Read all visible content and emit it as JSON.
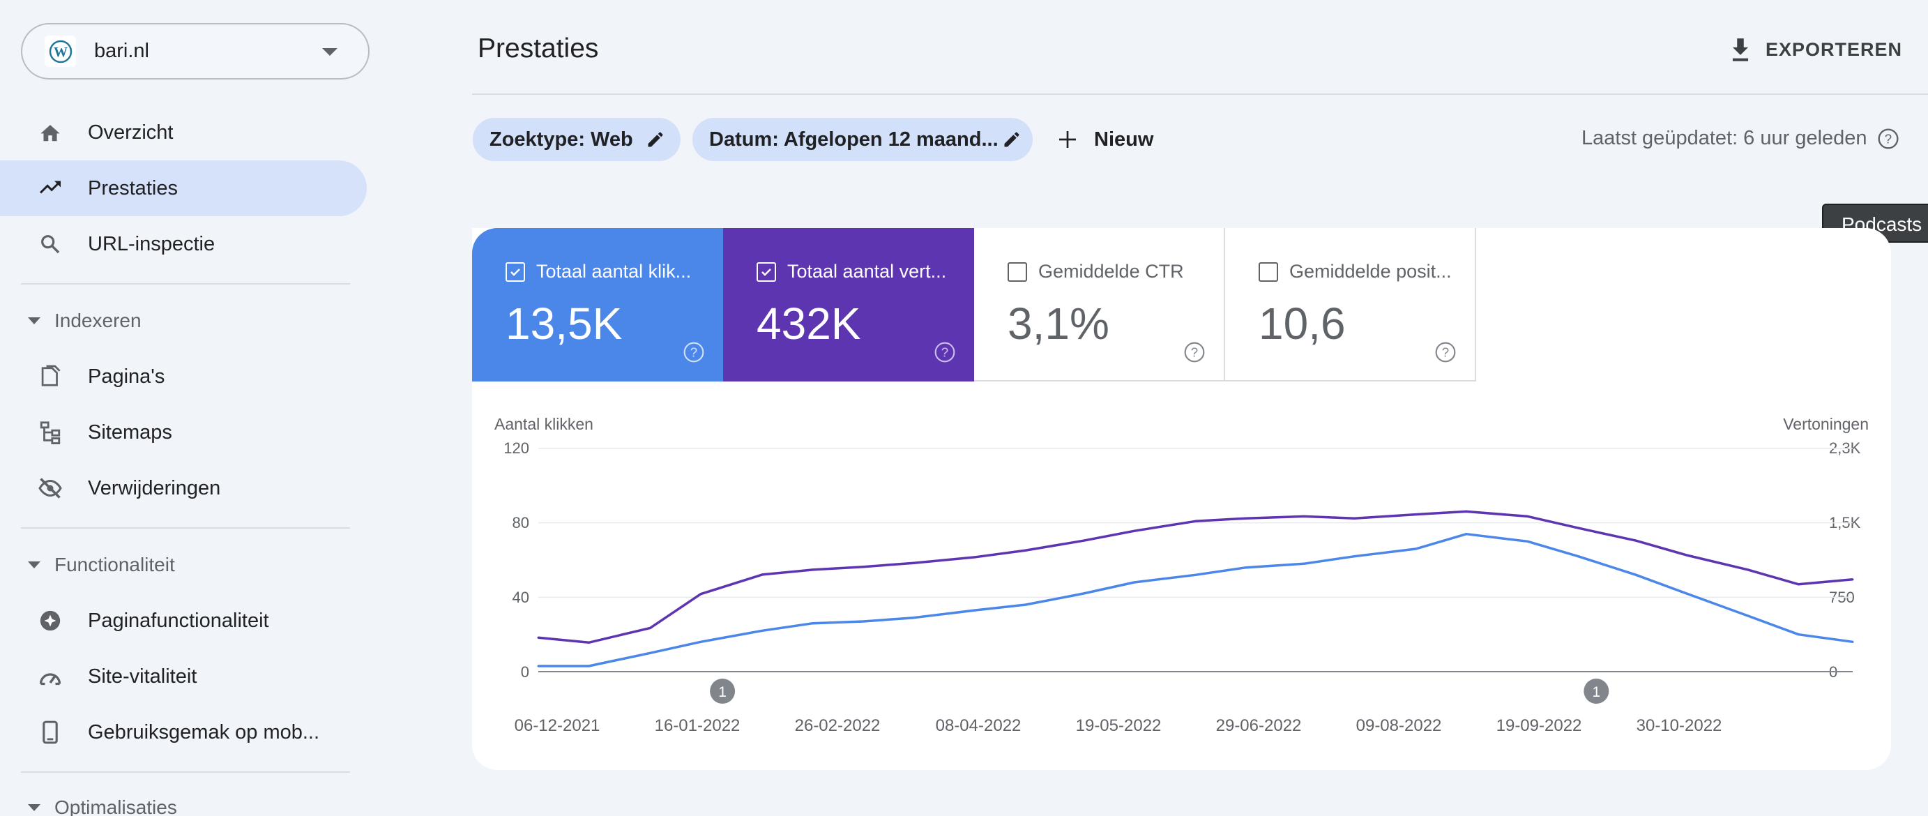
{
  "property": {
    "name": "bari.nl",
    "icon": "wordpress-icon"
  },
  "sidebar": {
    "items": [
      {
        "label": "Overzicht",
        "icon": "home-icon"
      },
      {
        "label": "Prestaties",
        "icon": "trending-up-icon"
      },
      {
        "label": "URL-inspectie",
        "icon": "search-icon"
      }
    ],
    "sections": [
      {
        "label": "Indexeren",
        "items": [
          {
            "label": "Pagina's",
            "icon": "pages-icon"
          },
          {
            "label": "Sitemaps",
            "icon": "sitemap-icon"
          },
          {
            "label": "Verwijderingen",
            "icon": "eye-off-icon"
          }
        ]
      },
      {
        "label": "Functionaliteit",
        "items": [
          {
            "label": "Paginafunctionaliteit",
            "icon": "page-experience-icon"
          },
          {
            "label": "Site-vitaliteit",
            "icon": "speedometer-icon"
          },
          {
            "label": "Gebruiksgemak op mob...",
            "icon": "smartphone-icon"
          }
        ]
      },
      {
        "label": "Optimalisaties"
      }
    ]
  },
  "header": {
    "title": "Prestaties",
    "export_label": "EXPORTEREN"
  },
  "filters": {
    "chips": [
      "Zoektype: Web",
      "Datum: Afgelopen 12 maand..."
    ],
    "new_label": "Nieuw",
    "updated": "Laatst geüpdatet: 6 uur geleden"
  },
  "tooltip": "Podcasts",
  "metrics": [
    {
      "label": "Totaal aantal klik...",
      "value": "13,5K",
      "checked": true,
      "color": "#4b86e9"
    },
    {
      "label": "Totaal aantal vert...",
      "value": "432K",
      "checked": true,
      "color": "#5e35b1"
    },
    {
      "label": "Gemiddelde CTR",
      "value": "3,1%",
      "checked": false
    },
    {
      "label": "Gemiddelde posit...",
      "value": "10,6",
      "checked": false
    }
  ],
  "chart_data": {
    "type": "line",
    "y_left_label": "Aantal klikken",
    "y_right_label": "Vertoningen",
    "y_left_ticks": [
      "120",
      "80",
      "40",
      "0"
    ],
    "y_right_ticks": [
      "2,3K",
      "1,5K",
      "750",
      "0"
    ],
    "y_left_range": [
      0,
      120
    ],
    "y_right_range": [
      0,
      2300
    ],
    "x_ticks": [
      "06-12-2021",
      "16-01-2022",
      "26-02-2022",
      "08-04-2022",
      "19-05-2022",
      "29-06-2022",
      "09-08-2022",
      "19-09-2022",
      "30-10-2022"
    ],
    "x_range": [
      "2021-12-01",
      "2022-11-30"
    ],
    "annotations": [
      {
        "date": "2022-01-21",
        "label": "1"
      },
      {
        "date": "2022-09-20",
        "label": "1"
      }
    ],
    "series": [
      {
        "name": "Totaal aantal klik...",
        "color": "#4b86e9",
        "axis": "left",
        "x": [
          "2021-12-01",
          "2021-12-15",
          "2022-01-01",
          "2022-01-15",
          "2022-02-01",
          "2022-02-15",
          "2022-03-01",
          "2022-03-15",
          "2022-04-01",
          "2022-04-15",
          "2022-05-01",
          "2022-05-15",
          "2022-06-01",
          "2022-06-15",
          "2022-07-01",
          "2022-07-15",
          "2022-08-01",
          "2022-08-15",
          "2022-09-01",
          "2022-09-15",
          "2022-10-01",
          "2022-10-15",
          "2022-11-01",
          "2022-11-15",
          "2022-11-30"
        ],
        "values": [
          3,
          3,
          10,
          16,
          22,
          26,
          27,
          29,
          33,
          36,
          42,
          48,
          52,
          56,
          58,
          62,
          66,
          74,
          70,
          62,
          52,
          42,
          30,
          20,
          16
        ]
      },
      {
        "name": "Totaal aantal vert...",
        "color": "#5e35b1",
        "axis": "right",
        "x": [
          "2021-12-01",
          "2021-12-15",
          "2022-01-01",
          "2022-01-15",
          "2022-02-01",
          "2022-02-15",
          "2022-03-01",
          "2022-03-15",
          "2022-04-01",
          "2022-04-15",
          "2022-05-01",
          "2022-05-15",
          "2022-06-01",
          "2022-06-15",
          "2022-07-01",
          "2022-07-15",
          "2022-08-01",
          "2022-08-15",
          "2022-09-01",
          "2022-09-15",
          "2022-10-01",
          "2022-10-15",
          "2022-11-01",
          "2022-11-15",
          "2022-11-30"
        ],
        "values": [
          350,
          300,
          450,
          800,
          1000,
          1050,
          1080,
          1120,
          1180,
          1250,
          1350,
          1450,
          1550,
          1580,
          1600,
          1580,
          1620,
          1650,
          1600,
          1480,
          1350,
          1200,
          1050,
          900,
          950
        ]
      }
    ]
  }
}
